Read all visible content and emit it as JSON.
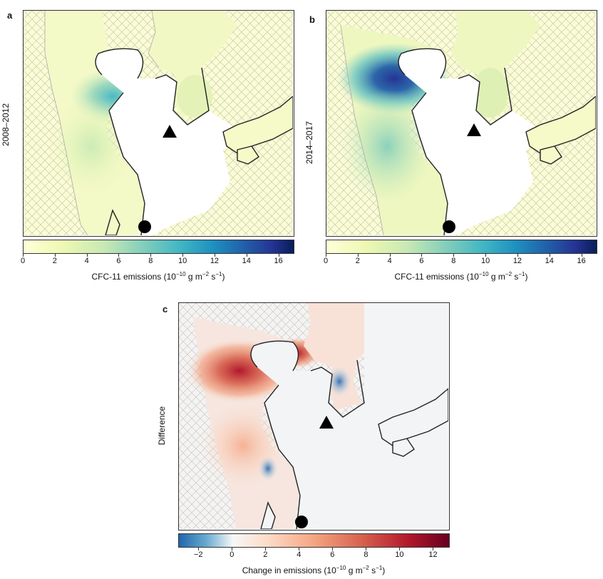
{
  "panels": {
    "a": {
      "letter": "a",
      "row_label": "2008–2012"
    },
    "b": {
      "letter": "b",
      "row_label": "2014–2017"
    },
    "c": {
      "letter": "c",
      "row_label": "Difference"
    }
  },
  "colorbars": {
    "emissions": {
      "ticks": [
        "0",
        "2",
        "4",
        "6",
        "8",
        "10",
        "12",
        "14",
        "16"
      ],
      "min": 0,
      "max": 17,
      "title_prefix": "CFC-11 emissions (10",
      "title_exp1": "−10",
      "title_mid": " g m",
      "title_exp2": "−2",
      "title_mid2": " s",
      "title_exp3": "−1",
      "title_suffix": ")",
      "colors": [
        "#ffffd9",
        "#edf8b1",
        "#c7e9b4",
        "#7fcdbb",
        "#41b6c4",
        "#1d91c0",
        "#225ea8",
        "#253494",
        "#081d58"
      ]
    },
    "change": {
      "ticks": [
        "−2",
        "0",
        "2",
        "4",
        "6",
        "8",
        "10",
        "12"
      ],
      "min": -3.2,
      "max": 13,
      "title_prefix": "Change in emissions (10",
      "title_exp1": "−10",
      "title_mid": " g m",
      "title_exp2": "−2",
      "title_mid2": " s",
      "title_exp3": "−1",
      "title_suffix": ")",
      "colors": [
        "#2166ac",
        "#67a9cf",
        "#d1e5f0",
        "#f7f7f7",
        "#fddbc7",
        "#ef8a62",
        "#d6604d",
        "#b2182b",
        "#67001f"
      ]
    }
  },
  "markers": {
    "station_triangle": "triangle-marker",
    "station_circle": "circle-marker"
  },
  "colors": {
    "sea": "#ffffff",
    "land_a": "#fafcd2",
    "hatch": "#b8b8b8",
    "coast": "#222222",
    "diff_land": "#f3f4f6"
  }
}
